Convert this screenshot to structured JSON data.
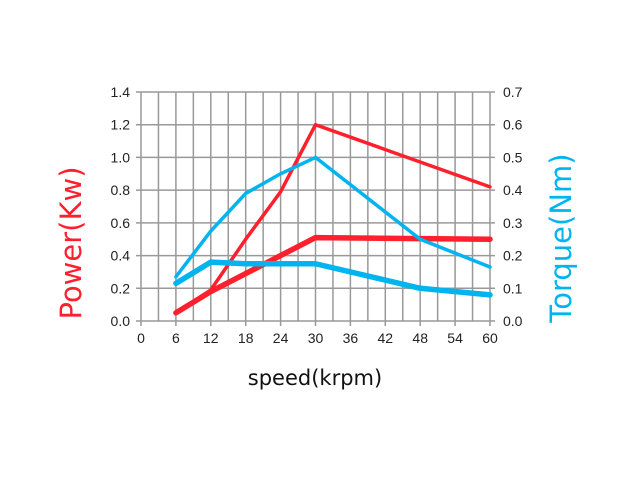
{
  "chart_data": {
    "type": "line",
    "title": "",
    "xlabel": "speed(krpm)",
    "ylabel": "Power(Kw)",
    "y2label": "Torque(Nm)",
    "xlim": [
      0,
      60
    ],
    "ylim": [
      0,
      1.4
    ],
    "y2lim": [
      0,
      0.7
    ],
    "xticks": [
      "0",
      "6",
      "12",
      "18",
      "24",
      "30",
      "36",
      "42",
      "48",
      "54",
      "60"
    ],
    "yticks": [
      "0.0",
      "0.2",
      "0.4",
      "0.6",
      "0.8",
      "1.0",
      "1.2",
      "1.4"
    ],
    "y2ticks": [
      "0.0",
      "0.1",
      "0.2",
      "0.3",
      "0.4",
      "0.5",
      "0.6",
      "0.7"
    ],
    "grid": true,
    "colors": {
      "power": "#ff1f2d",
      "torque": "#00b4f0",
      "grid": "#999999"
    },
    "series": [
      {
        "axis": "left",
        "color": "#ff1f2d",
        "weight": "thin",
        "points": [
          [
            6,
            0.05
          ],
          [
            12,
            0.19
          ],
          [
            18,
            0.5
          ],
          [
            24,
            0.79
          ],
          [
            30,
            1.2
          ],
          [
            60,
            0.82
          ]
        ]
      },
      {
        "axis": "left",
        "color": "#ff1f2d",
        "weight": "thick",
        "points": [
          [
            6,
            0.05
          ],
          [
            12,
            0.18
          ],
          [
            18,
            0.29
          ],
          [
            24,
            0.4
          ],
          [
            30,
            0.51
          ],
          [
            60,
            0.5
          ]
        ]
      },
      {
        "axis": "right",
        "color": "#00b4f0",
        "weight": "thin",
        "points": [
          [
            6,
            0.135
          ],
          [
            12,
            0.275
          ],
          [
            18,
            0.39
          ],
          [
            24,
            0.45
          ],
          [
            30,
            0.5
          ],
          [
            48,
            0.25
          ],
          [
            60,
            0.165
          ]
        ]
      },
      {
        "axis": "right",
        "color": "#00b4f0",
        "weight": "thick",
        "points": [
          [
            6,
            0.115
          ],
          [
            12,
            0.18
          ],
          [
            18,
            0.175
          ],
          [
            24,
            0.175
          ],
          [
            30,
            0.175
          ],
          [
            48,
            0.1
          ],
          [
            60,
            0.08
          ]
        ]
      }
    ]
  }
}
